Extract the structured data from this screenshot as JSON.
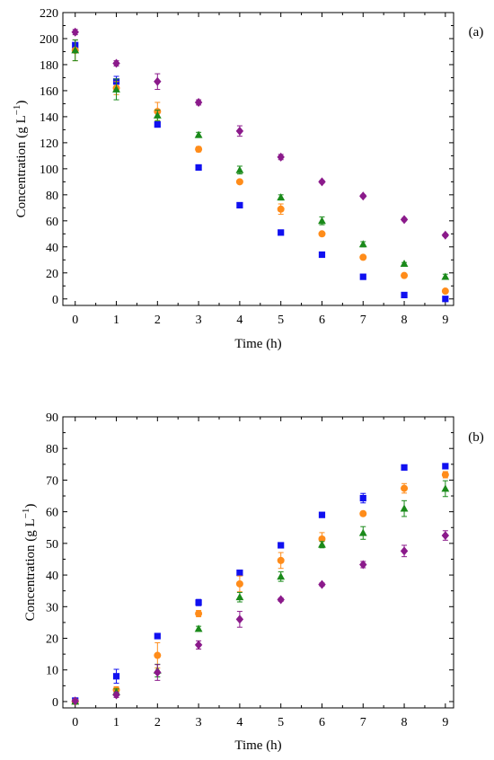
{
  "chart_data": [
    {
      "type": "scatter",
      "panel_label": "(a)",
      "xlabel": "Time (h)",
      "ylabel_main": "Concentration (g L",
      "ylabel_sup": "−1",
      "ylabel_close": ")",
      "xlim": [
        -0.3,
        9.2
      ],
      "ylim": [
        -5,
        220
      ],
      "x_ticks": [
        0,
        1,
        2,
        3,
        4,
        5,
        6,
        7,
        8,
        9
      ],
      "y_ticks": [
        0,
        20,
        40,
        60,
        80,
        100,
        120,
        140,
        160,
        180,
        200,
        220
      ],
      "x": [
        0,
        1,
        2,
        3,
        4,
        5,
        6,
        7,
        8,
        9
      ],
      "series": [
        {
          "marker": "square",
          "color": "#1010f0",
          "values": [
            195,
            167,
            134,
            101,
            72,
            51,
            34,
            17,
            3,
            0
          ],
          "errors": [
            4,
            4,
            2,
            2,
            1,
            1,
            1,
            1,
            1,
            1
          ]
        },
        {
          "marker": "circle",
          "color": "#ff8c1a",
          "values": [
            191,
            162,
            144,
            115,
            90,
            69,
            50,
            32,
            18,
            6
          ],
          "errors": [
            8,
            5,
            7,
            2,
            1,
            4,
            1,
            1,
            1,
            1
          ]
        },
        {
          "marker": "triangle",
          "color": "#1a8a1a",
          "values": [
            191,
            161,
            141,
            126,
            99,
            78,
            60,
            42,
            27,
            17
          ],
          "errors": [
            8,
            8,
            4,
            2,
            3,
            2,
            3,
            2,
            1,
            2
          ]
        },
        {
          "marker": "diamond",
          "color": "#8b1a8b",
          "values": [
            205,
            181,
            167,
            151,
            129,
            109,
            90,
            79,
            61,
            49
          ],
          "errors": [
            2,
            2,
            6,
            2,
            4,
            2,
            1,
            1,
            1,
            1
          ]
        }
      ]
    },
    {
      "type": "scatter",
      "panel_label": "(b)",
      "xlabel": "Time (h)",
      "ylabel_main": "Concentration (g L",
      "ylabel_sup": "−1",
      "ylabel_close": ")",
      "xlim": [
        -0.3,
        9.2
      ],
      "ylim": [
        -2,
        90
      ],
      "x_ticks": [
        0,
        1,
        2,
        3,
        4,
        5,
        6,
        7,
        8,
        9
      ],
      "y_ticks": [
        0,
        10,
        20,
        30,
        40,
        50,
        60,
        70,
        80,
        90
      ],
      "x": [
        0,
        1,
        2,
        3,
        4,
        5,
        6,
        7,
        8,
        9
      ],
      "series": [
        {
          "marker": "square",
          "color": "#1010f0",
          "values": [
            0.3,
            8,
            20.7,
            31.3,
            40.7,
            49.4,
            59,
            64.3,
            74,
            74.4
          ],
          "errors": [
            0.3,
            2.2,
            0.5,
            1,
            0.5,
            0.5,
            0.5,
            1.5,
            0.5,
            0.5
          ]
        },
        {
          "marker": "circle",
          "color": "#ff8c1a",
          "values": [
            0,
            3.7,
            14.6,
            27.8,
            37.2,
            44.6,
            51.4,
            59.4,
            67.4,
            71.7
          ],
          "errors": [
            0.3,
            1,
            4,
            1,
            2.5,
            2.5,
            2,
            0.5,
            1.5,
            1
          ]
        },
        {
          "marker": "triangle",
          "color": "#1a8a1a",
          "values": [
            0,
            3,
            9.8,
            23,
            33,
            39.5,
            49.6,
            53.3,
            61,
            67.3
          ],
          "errors": [
            0.3,
            1,
            2,
            0.8,
            1.5,
            1.5,
            1,
            2,
            2.5,
            2.5
          ]
        },
        {
          "marker": "diamond",
          "color": "#8b1a8b",
          "values": [
            0.2,
            2.1,
            9.2,
            17.9,
            26,
            32.2,
            37,
            43.3,
            47.6,
            52.5
          ],
          "errors": [
            0.3,
            0.8,
            2.5,
            1.3,
            2.5,
            0.5,
            0.5,
            1,
            1.8,
            1.5
          ]
        }
      ]
    }
  ]
}
